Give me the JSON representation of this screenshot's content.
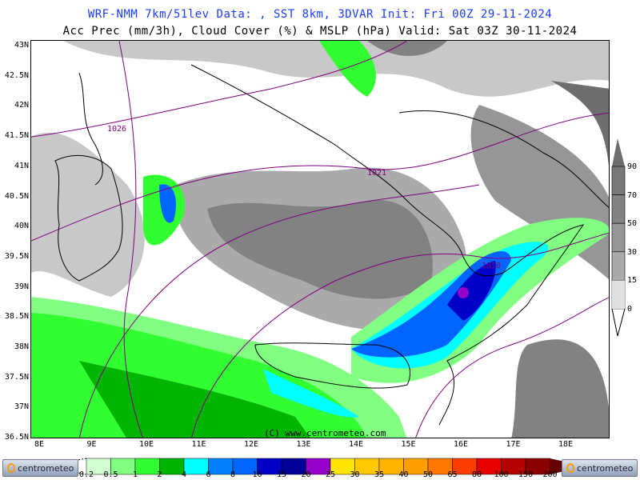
{
  "header": {
    "line1": "WRF-NMM 7km/51lev  Data: , SST 8km, 3DVAR  Init: Fri 00Z 29-11-2024",
    "line2": "Acc Prec (mm/3h), Cloud Cover (%) & MSLP (hPa)  Valid: Sat 03Z 30-11-2024"
  },
  "map": {
    "lat_ticks": [
      "43N",
      "42.5N",
      "42N",
      "41.5N",
      "41N",
      "40.5N",
      "40N",
      "39.5N",
      "39N",
      "38.5N",
      "38N",
      "37.5N",
      "37N",
      "36.5N"
    ],
    "lon_ticks": [
      "8E",
      "9E",
      "10E",
      "11E",
      "12E",
      "13E",
      "14E",
      "15E",
      "16E",
      "17E",
      "18E"
    ],
    "isobar_labels": [
      "1026",
      "1021",
      "1018"
    ],
    "watermark": "(C) www.centrometeo.com"
  },
  "cloud_cover_scale": {
    "labels": [
      "90",
      "70",
      "50",
      "30",
      "15",
      "0"
    ],
    "colors": [
      "#6e6e6e",
      "#828282",
      "#969696",
      "#aaaaaa",
      "#c8c8c8",
      "#e0e0e0"
    ]
  },
  "precip_scale": {
    "labels": [
      "0.2",
      "0.5",
      "1",
      "2",
      "4",
      "6",
      "8",
      "10",
      "15",
      "20",
      "25",
      "30",
      "35",
      "40",
      "50",
      "65",
      "80",
      "100",
      "150",
      "200"
    ],
    "colors": [
      "#d2ffd2",
      "#82ff82",
      "#32ff32",
      "#00b400",
      "#00ffff",
      "#0080ff",
      "#0064ff",
      "#0000c8",
      "#000096",
      "#9600c8",
      "#ffe600",
      "#ffc800",
      "#ffb400",
      "#ffa000",
      "#ff7800",
      "#ff3c00",
      "#e60000",
      "#b40000",
      "#8c0000",
      "#640000"
    ]
  },
  "logos": {
    "left": "centrometeo",
    "right": "centrometeo"
  }
}
